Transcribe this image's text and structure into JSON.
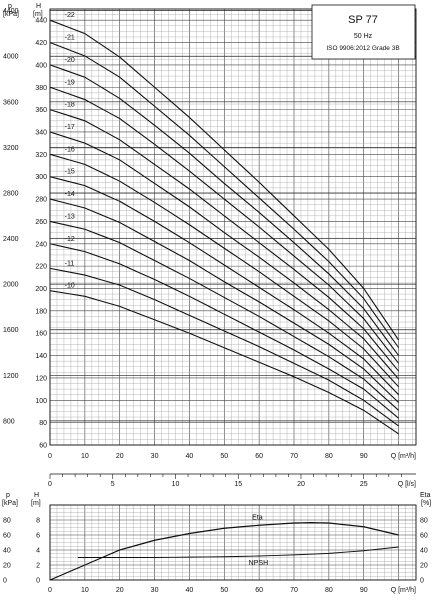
{
  "title_box": {
    "model": "SP 77",
    "frequency": "50 Hz",
    "standard": "ISO 9906:2012 Grade 3B"
  },
  "chart_data": [
    {
      "type": "line",
      "name": "performance-curves",
      "x_label": "Q [m³/h]",
      "xlim": [
        0,
        105
      ],
      "x_ticks": [
        0,
        10,
        20,
        30,
        40,
        50,
        60,
        70,
        80,
        90
      ],
      "y_label": "H [m]",
      "ylim": [
        60,
        450
      ],
      "y_ticks": [
        60,
        80,
        100,
        120,
        140,
        160,
        180,
        200,
        220,
        240,
        260,
        280,
        300,
        320,
        340,
        360,
        380,
        400,
        420,
        440
      ],
      "y2_label": "p [kPa]",
      "y2_ticks": [
        800,
        1200,
        1600,
        2000,
        2400,
        2800,
        3200,
        3600,
        4000,
        4400
      ],
      "x2_label": "Q [l/s]",
      "x2_ticks": [
        0,
        5,
        10,
        15,
        20,
        25
      ],
      "stage_labels": [
        "-10",
        "-11",
        "-12",
        "-13",
        "-14",
        "-15",
        "-16",
        "-17",
        "-18",
        "-19",
        "-20",
        "-21",
        "-22"
      ],
      "q_end": 100,
      "series": [
        {
          "name": "-10",
          "x": [
            0,
            10,
            20,
            30,
            40,
            50,
            60,
            70,
            80,
            90,
            100
          ],
          "y": [
            198,
            193,
            184,
            172,
            160,
            147,
            134,
            121,
            107,
            91,
            70
          ]
        },
        {
          "name": "-11",
          "x": [
            0,
            10,
            20,
            30,
            40,
            50,
            60,
            70,
            80,
            90,
            100
          ],
          "y": [
            218,
            212,
            203,
            190,
            176,
            162,
            148,
            133,
            118,
            100,
            77
          ]
        },
        {
          "name": "-12",
          "x": [
            0,
            10,
            20,
            30,
            40,
            50,
            60,
            70,
            80,
            90,
            100
          ],
          "y": [
            240,
            233,
            222,
            208,
            193,
            177,
            161,
            145,
            128,
            110,
            84
          ]
        },
        {
          "name": "-13",
          "x": [
            0,
            10,
            20,
            30,
            40,
            50,
            60,
            70,
            80,
            90,
            100
          ],
          "y": [
            260,
            253,
            241,
            225,
            209,
            192,
            175,
            157,
            139,
            119,
            91
          ]
        },
        {
          "name": "-14",
          "x": [
            0,
            10,
            20,
            30,
            40,
            50,
            60,
            70,
            80,
            90,
            100
          ],
          "y": [
            280,
            272,
            259,
            242,
            225,
            206,
            188,
            169,
            150,
            128,
            98
          ]
        },
        {
          "name": "-15",
          "x": [
            0,
            10,
            20,
            30,
            40,
            50,
            60,
            70,
            80,
            90,
            100
          ],
          "y": [
            300,
            292,
            278,
            260,
            241,
            221,
            201,
            181,
            160,
            137,
            105
          ]
        },
        {
          "name": "-16",
          "x": [
            0,
            10,
            20,
            30,
            40,
            50,
            60,
            70,
            80,
            90,
            100
          ],
          "y": [
            320,
            311,
            296,
            277,
            257,
            236,
            215,
            193,
            171,
            146,
            112
          ]
        },
        {
          "name": "-17",
          "x": [
            0,
            10,
            20,
            30,
            40,
            50,
            60,
            70,
            80,
            90,
            100
          ],
          "y": [
            340,
            330,
            315,
            294,
            273,
            250,
            228,
            205,
            181,
            155,
            119
          ]
        },
        {
          "name": "-18",
          "x": [
            0,
            10,
            20,
            30,
            40,
            50,
            60,
            70,
            80,
            90,
            100
          ],
          "y": [
            360,
            350,
            333,
            311,
            289,
            265,
            241,
            217,
            192,
            164,
            126
          ]
        },
        {
          "name": "-19",
          "x": [
            0,
            10,
            20,
            30,
            40,
            50,
            60,
            70,
            80,
            90,
            100
          ],
          "y": [
            380,
            369,
            352,
            329,
            305,
            280,
            255,
            229,
            203,
            173,
            133
          ]
        },
        {
          "name": "-20",
          "x": [
            0,
            10,
            20,
            30,
            40,
            50,
            60,
            70,
            80,
            90,
            100
          ],
          "y": [
            400,
            389,
            370,
            346,
            321,
            294,
            268,
            241,
            213,
            182,
            140
          ]
        },
        {
          "name": "-21",
          "x": [
            0,
            10,
            20,
            30,
            40,
            50,
            60,
            70,
            80,
            90,
            100
          ],
          "y": [
            420,
            408,
            389,
            363,
            337,
            309,
            281,
            253,
            224,
            191,
            147
          ]
        },
        {
          "name": "-22",
          "x": [
            0,
            10,
            20,
            30,
            40,
            50,
            60,
            70,
            80,
            90,
            100
          ],
          "y": [
            440,
            428,
            407,
            380,
            353,
            324,
            295,
            265,
            235,
            200,
            154
          ]
        }
      ]
    },
    {
      "type": "line",
      "name": "efficiency-npsh",
      "x_label": "Q [m³/h]",
      "xlim": [
        0,
        105
      ],
      "x_ticks": [
        0,
        10,
        20,
        30,
        40,
        50,
        60,
        70,
        80,
        90
      ],
      "y_label": "H [m]",
      "ylim": [
        0,
        10
      ],
      "y_ticks": [
        0,
        2,
        4,
        6,
        8
      ],
      "y_kpa_label": "p [kPa]",
      "y_kpa_ticks": [
        0,
        20,
        40,
        60,
        80
      ],
      "y2_label": "Eta [%]",
      "y2_ticks": [
        0,
        20,
        40,
        60,
        80
      ],
      "series": [
        {
          "name": "Eta",
          "x": [
            0,
            10,
            20,
            30,
            40,
            50,
            60,
            70,
            75,
            80,
            90,
            100
          ],
          "y": [
            0,
            20,
            40,
            53,
            62,
            69,
            73,
            76,
            76.5,
            76,
            71,
            60
          ]
        },
        {
          "name": "NPSH",
          "x": [
            8,
            20,
            30,
            40,
            50,
            60,
            70,
            80,
            90,
            100
          ],
          "y": [
            3.0,
            3.0,
            3.0,
            3.05,
            3.1,
            3.2,
            3.35,
            3.55,
            3.9,
            4.4
          ]
        }
      ]
    }
  ]
}
